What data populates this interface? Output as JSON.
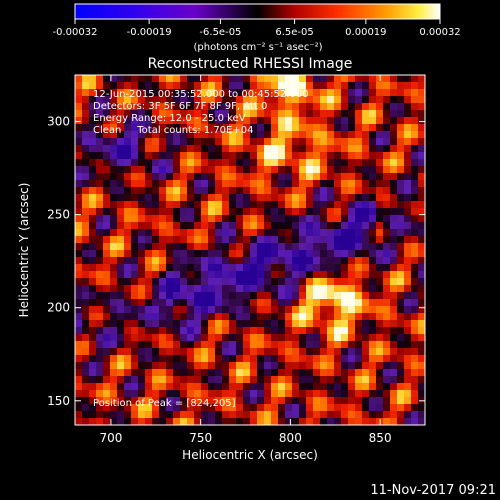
{
  "colorbar": {
    "ticks": [
      "-0.00032",
      "-0.00019",
      "-6.5e-05",
      "6.5e-05",
      "0.00019",
      "0.00032"
    ],
    "tick_values": [
      -0.00032,
      -0.00019,
      -6.5e-05,
      6.5e-05,
      0.00019,
      0.00032
    ],
    "units_label": "(photons cm⁻² s⁻¹ asec⁻²)",
    "range": [
      -0.00032,
      0.00032
    ],
    "colors": [
      "#0000ff",
      "#6a00c8",
      "#000000",
      "#ff0000",
      "#ff8a00",
      "#ffff40",
      "#ffffff"
    ]
  },
  "chart_data": {
    "type": "heatmap",
    "title": "Reconstructed RHESSI Image",
    "xlabel": "Heliocentric X (arcsec)",
    "ylabel": "Heliocentric Y (arcsec)",
    "xlim": [
      680,
      875
    ],
    "ylim": [
      137,
      325
    ],
    "xticks": [
      700,
      750,
      800,
      850
    ],
    "yticks": [
      150,
      200,
      250,
      300
    ],
    "xtick_labels": [
      "700",
      "750",
      "800",
      "850"
    ],
    "ytick_labels": [
      "150",
      "200",
      "250",
      "300"
    ],
    "annotations": [
      "12-Jun-2015 00:35:52.000 to 00:45:52.000",
      "Detectors: 3F 5F 6F 7F 8F 9F, Att 0",
      "Energy Range: 12.0 - 25.0 keV",
      "Clean     Total counts: 1.70E+04"
    ],
    "peak_label": "Position of Peak = [824,205]",
    "peak": [
      824,
      205
    ]
  },
  "footer": {
    "timestamp": "11-Nov-2017 09:21"
  }
}
